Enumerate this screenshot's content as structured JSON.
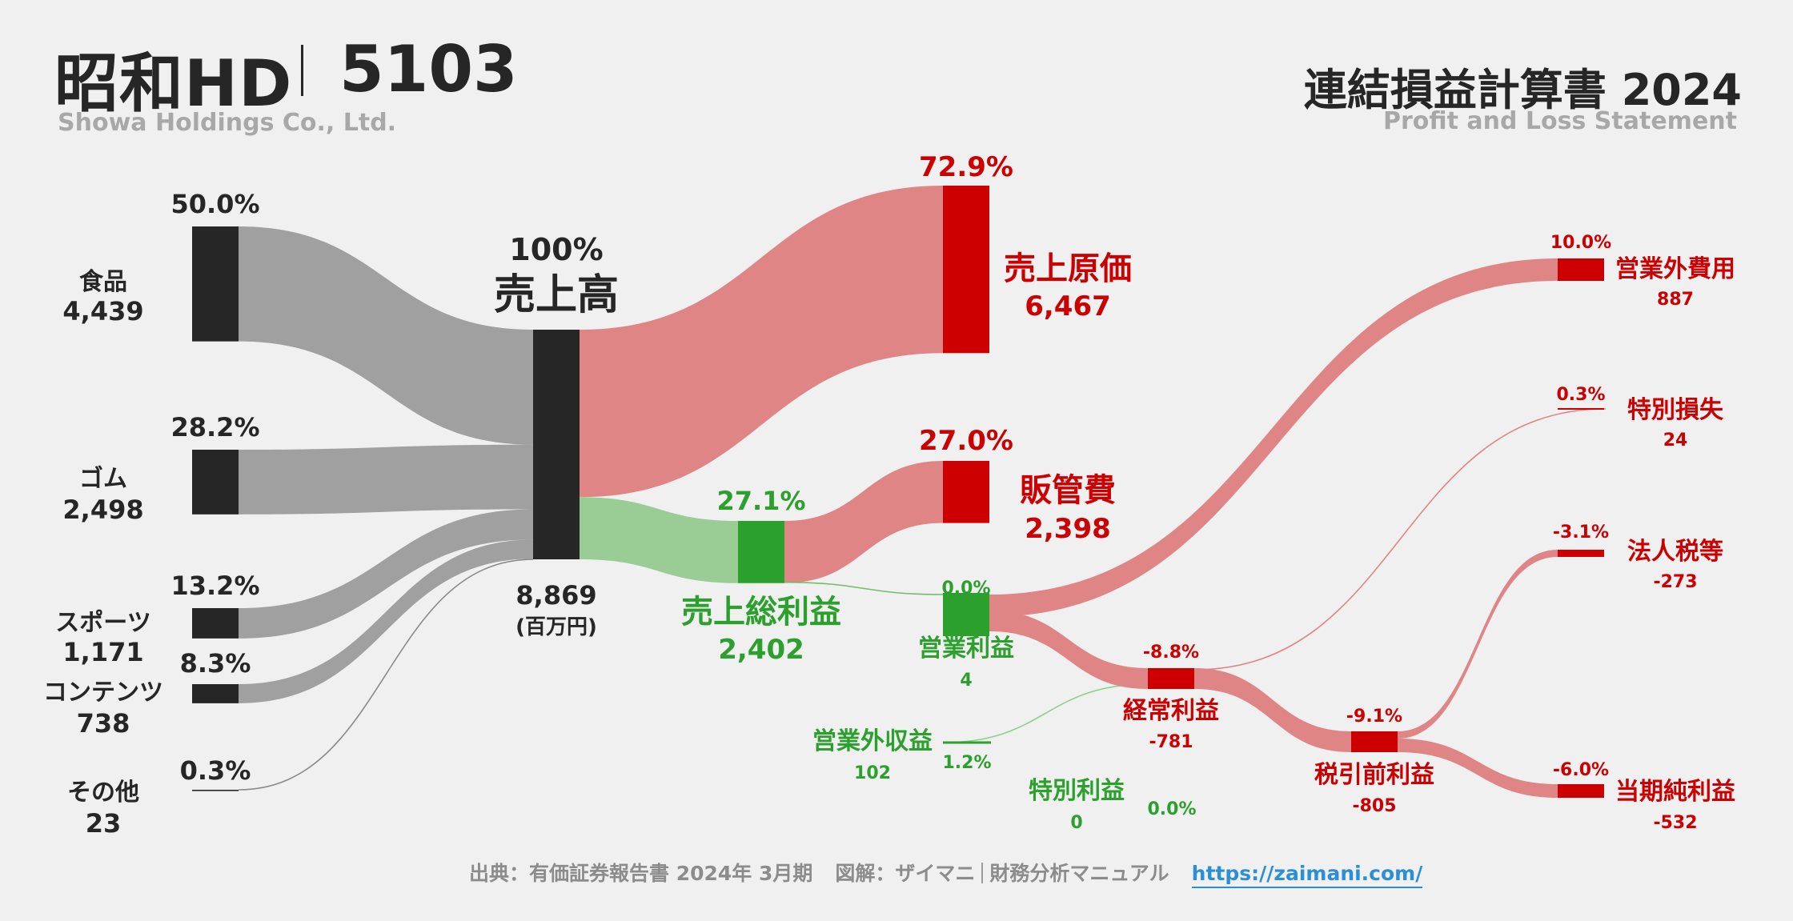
{
  "header": {
    "company": "昭和HD",
    "ticker": "5103",
    "company_en": "Showa Holdings Co., Ltd.",
    "statement_title": "連結損益計算書 2024",
    "statement_subtitle": "Profit and Loss Statement"
  },
  "footer": {
    "source": "出典：有価証券報告書 2024年 3月期",
    "credit_prefix": "図解：ザイマニ",
    "credit_suffix": "財務分析マニュアル",
    "link": "https://zaimani.com/"
  },
  "colors": {
    "background": "#f0f0f0",
    "segment_node": "#262626",
    "segment_flow": "#a0a0a0",
    "cost": "#cc0000",
    "cost_flow": "#e08585",
    "profit": "#2ca02c",
    "profit_flow": "#9acd96",
    "text_dark": "#262626"
  },
  "chart_data": {
    "type": "sankey",
    "unit": "(百万円)",
    "segments": [
      {
        "name": "食品",
        "value": 4439,
        "value_label": "4,439",
        "pct": "50.0%"
      },
      {
        "name": "ゴム",
        "value": 2498,
        "value_label": "2,498",
        "pct": "28.2%"
      },
      {
        "name": "スポーツ",
        "value": 1171,
        "value_label": "1,171",
        "pct": "13.2%"
      },
      {
        "name": "コンテンツ",
        "value": 738,
        "value_label": "738",
        "pct": "8.3%"
      },
      {
        "name": "その他",
        "value": 23,
        "value_label": "23",
        "pct": "0.3%"
      }
    ],
    "revenue": {
      "name": "売上高",
      "value": 8869,
      "value_label": "8,869",
      "pct": "100%"
    },
    "cost_of_sales": {
      "name": "売上原価",
      "value": 6467,
      "value_label": "6,467",
      "pct": "72.9%"
    },
    "gross_profit": {
      "name": "売上総利益",
      "value": 2402,
      "value_label": "2,402",
      "pct": "27.1%"
    },
    "sga": {
      "name": "販管費",
      "value": 2398,
      "value_label": "2,398",
      "pct": "27.0%"
    },
    "operating_profit": {
      "name": "営業利益",
      "value": 4,
      "value_label": "4",
      "pct": "0.0%"
    },
    "non_operating_income": {
      "name": "営業外収益",
      "value": 102,
      "value_label": "102",
      "pct": "1.2%"
    },
    "non_operating_expenses": {
      "name": "営業外費用",
      "value": 887,
      "value_label": "887",
      "pct": "10.0%"
    },
    "ordinary_profit": {
      "name": "経常利益",
      "value": -781,
      "value_label": "-781",
      "pct": "-8.8%"
    },
    "extraordinary_income": {
      "name": "特別利益",
      "value": 0,
      "value_label": "0",
      "pct": "0.0%"
    },
    "extraordinary_losses": {
      "name": "特別損失",
      "value": 24,
      "value_label": "24",
      "pct": "0.3%"
    },
    "pretax_profit": {
      "name": "税引前利益",
      "value": -805,
      "value_label": "-805",
      "pct": "-9.1%"
    },
    "income_taxes": {
      "name": "法人税等",
      "value": -273,
      "value_label": "-273",
      "pct": "-3.1%"
    },
    "net_income": {
      "name": "当期純利益",
      "value": -532,
      "value_label": "-532",
      "pct": "-6.0%"
    }
  }
}
